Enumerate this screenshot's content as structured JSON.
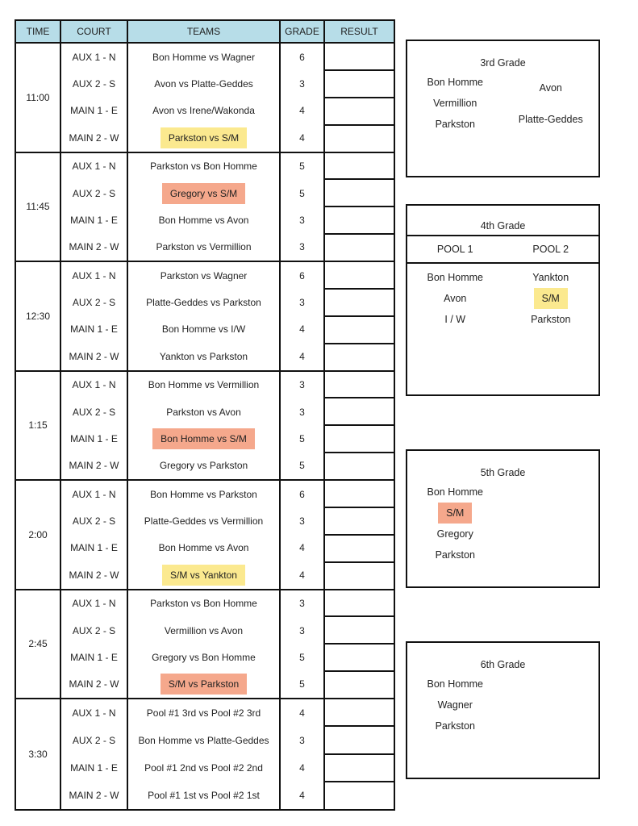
{
  "headers": {
    "time": "TIME",
    "court": "COURT",
    "teams": "TEAMS",
    "grade": "GRADE",
    "result": "RESULT"
  },
  "colors": {
    "yellow": "#fbe98f",
    "salmon": "#f5a88c",
    "header_bg": "#b7dde8"
  },
  "blocks": [
    {
      "time": "11:00",
      "rows": [
        {
          "court": "AUX 1 - N",
          "teams": "Bon Homme vs Wagner",
          "grade": "6",
          "highlight": ""
        },
        {
          "court": "AUX 2 - S",
          "teams": "Avon vs Platte-Geddes",
          "grade": "3",
          "highlight": ""
        },
        {
          "court": "MAIN 1 - E",
          "teams": "Avon vs Irene/Wakonda",
          "grade": "4",
          "highlight": ""
        },
        {
          "court": "MAIN 2 - W",
          "teams": "Parkston vs S/M",
          "grade": "4",
          "highlight": "yellow"
        }
      ]
    },
    {
      "time": "11:45",
      "rows": [
        {
          "court": "AUX 1 - N",
          "teams": "Parkston vs Bon Homme",
          "grade": "5",
          "highlight": ""
        },
        {
          "court": "AUX 2 - S",
          "teams": "Gregory vs S/M",
          "grade": "5",
          "highlight": "salmon"
        },
        {
          "court": "MAIN 1 - E",
          "teams": "Bon Homme vs Avon",
          "grade": "3",
          "highlight": ""
        },
        {
          "court": "MAIN 2 - W",
          "teams": "Parkston vs Vermillion",
          "grade": "3",
          "highlight": ""
        }
      ]
    },
    {
      "time": "12:30",
      "rows": [
        {
          "court": "AUX 1 - N",
          "teams": "Parkston vs Wagner",
          "grade": "6",
          "highlight": ""
        },
        {
          "court": "AUX 2 - S",
          "teams": "Platte-Geddes vs Parkston",
          "grade": "3",
          "highlight": ""
        },
        {
          "court": "MAIN 1 - E",
          "teams": "Bon Homme vs I/W",
          "grade": "4",
          "highlight": ""
        },
        {
          "court": "MAIN 2 - W",
          "teams": "Yankton vs Parkston",
          "grade": "4",
          "highlight": ""
        }
      ]
    },
    {
      "time": "1:15",
      "rows": [
        {
          "court": "AUX 1 - N",
          "teams": "Bon Homme vs Vermillion",
          "grade": "3",
          "highlight": ""
        },
        {
          "court": "AUX 2 - S",
          "teams": "Parkston vs Avon",
          "grade": "3",
          "highlight": ""
        },
        {
          "court": "MAIN 1 - E",
          "teams": "Bon Homme vs S/M",
          "grade": "5",
          "highlight": "salmon"
        },
        {
          "court": "MAIN 2 - W",
          "teams": "Gregory vs Parkston",
          "grade": "5",
          "highlight": ""
        }
      ]
    },
    {
      "time": "2:00",
      "rows": [
        {
          "court": "AUX 1 - N",
          "teams": "Bon Homme vs Parkston",
          "grade": "6",
          "highlight": ""
        },
        {
          "court": "AUX 2 - S",
          "teams": "Platte-Geddes vs Vermillion",
          "grade": "3",
          "highlight": ""
        },
        {
          "court": "MAIN 1 - E",
          "teams": "Bon Homme vs Avon",
          "grade": "4",
          "highlight": ""
        },
        {
          "court": "MAIN 2 - W",
          "teams": "S/M vs Yankton",
          "grade": "4",
          "highlight": "yellow"
        }
      ]
    },
    {
      "time": "2:45",
      "rows": [
        {
          "court": "AUX 1 - N",
          "teams": "Parkston vs Bon Homme",
          "grade": "3",
          "highlight": ""
        },
        {
          "court": "AUX 2 - S",
          "teams": "Vermillion vs Avon",
          "grade": "3",
          "highlight": ""
        },
        {
          "court": "MAIN 1 - E",
          "teams": "Gregory vs Bon Homme",
          "grade": "5",
          "highlight": ""
        },
        {
          "court": "MAIN 2 - W",
          "teams": "S/M vs Parkston",
          "grade": "5",
          "highlight": "salmon"
        }
      ]
    },
    {
      "time": "3:30",
      "rows": [
        {
          "court": "AUX 1 - N",
          "teams": "Pool #1 3rd vs Pool #2 3rd",
          "grade": "4",
          "highlight": ""
        },
        {
          "court": "AUX 2 - S",
          "teams": "Bon Homme vs Platte-Geddes",
          "grade": "3",
          "highlight": ""
        },
        {
          "court": "MAIN 1 - E",
          "teams": "Pool #1 2nd vs Pool #2 2nd",
          "grade": "4",
          "highlight": ""
        },
        {
          "court": "MAIN 2 - W",
          "teams": "Pool #1 1st vs Pool #2 1st",
          "grade": "4",
          "highlight": ""
        }
      ]
    }
  ],
  "grades": [
    {
      "title": "3rd Grade",
      "pools": [],
      "columns": [
        [
          {
            "name": "Bon Homme",
            "highlight": ""
          },
          {
            "name": "Vermillion",
            "highlight": ""
          },
          {
            "name": "Parkston",
            "highlight": ""
          }
        ],
        [
          {
            "name": "Avon",
            "highlight": ""
          },
          {
            "name": "Platte-Geddes",
            "highlight": ""
          }
        ]
      ]
    },
    {
      "title": "4th Grade",
      "pools": [
        "POOL 1",
        "POOL 2"
      ],
      "columns": [
        [
          {
            "name": "Bon Homme",
            "highlight": ""
          },
          {
            "name": "Avon",
            "highlight": ""
          },
          {
            "name": "I / W",
            "highlight": ""
          }
        ],
        [
          {
            "name": "Yankton",
            "highlight": ""
          },
          {
            "name": "S/M",
            "highlight": "yellow"
          },
          {
            "name": "Parkston",
            "highlight": ""
          }
        ]
      ]
    },
    {
      "title": "5th Grade",
      "pools": [],
      "columns": [
        [
          {
            "name": "Bon Homme",
            "highlight": ""
          },
          {
            "name": "S/M",
            "highlight": "salmon"
          },
          {
            "name": "Gregory",
            "highlight": ""
          },
          {
            "name": "Parkston",
            "highlight": ""
          }
        ],
        []
      ]
    },
    {
      "title": "6th Grade",
      "pools": [],
      "columns": [
        [
          {
            "name": "Bon Homme",
            "highlight": ""
          },
          {
            "name": "Wagner",
            "highlight": ""
          },
          {
            "name": "Parkston",
            "highlight": ""
          }
        ],
        []
      ]
    }
  ]
}
